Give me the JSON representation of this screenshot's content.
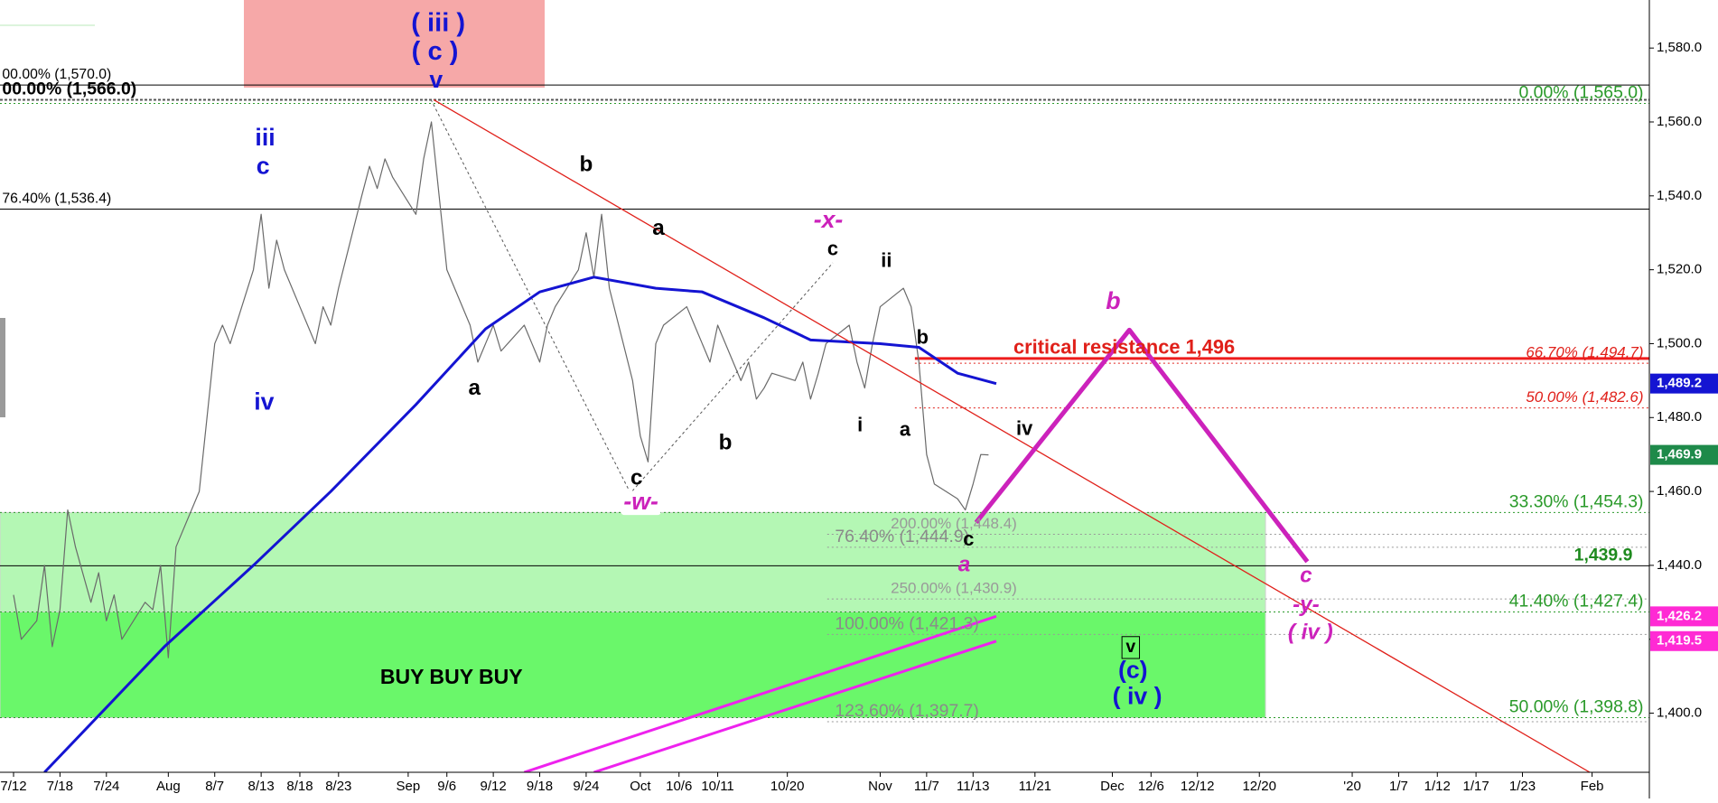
{
  "chart_data": {
    "type": "line",
    "xlim": [
      191.25,
      404.4
    ],
    "ylim": [
      1384,
      1593
    ],
    "xticks": [
      {
        "value": 193,
        "label": "7/12"
      },
      {
        "value": 199,
        "label": "7/18"
      },
      {
        "value": 205,
        "label": "7/24"
      },
      {
        "value": 213,
        "label": "Aug"
      },
      {
        "value": 219,
        "label": "8/7"
      },
      {
        "value": 225,
        "label": "8/13"
      },
      {
        "value": 230,
        "label": "8/18"
      },
      {
        "value": 235,
        "label": "8/23"
      },
      {
        "value": 244,
        "label": "Sep"
      },
      {
        "value": 249,
        "label": "9/6"
      },
      {
        "value": 255,
        "label": "9/12"
      },
      {
        "value": 261,
        "label": "9/18"
      },
      {
        "value": 267,
        "label": "9/24"
      },
      {
        "value": 274,
        "label": "Oct"
      },
      {
        "value": 279,
        "label": "10/6"
      },
      {
        "value": 284,
        "label": "10/11"
      },
      {
        "value": 293,
        "label": "10/20"
      },
      {
        "value": 305,
        "label": "Nov"
      },
      {
        "value": 311,
        "label": "11/7"
      },
      {
        "value": 317,
        "label": "11/13"
      },
      {
        "value": 325,
        "label": "11/21"
      },
      {
        "value": 335,
        "label": "Dec"
      },
      {
        "value": 340,
        "label": "12/6"
      },
      {
        "value": 346,
        "label": "12/12"
      },
      {
        "value": 354,
        "label": "12/20"
      },
      {
        "value": 366,
        "label": "'20"
      },
      {
        "value": 372,
        "label": "1/7"
      },
      {
        "value": 377,
        "label": "1/12"
      },
      {
        "value": 382,
        "label": "1/17"
      },
      {
        "value": 388,
        "label": "1/23"
      },
      {
        "value": 397,
        "label": "Feb"
      }
    ],
    "yticks": [
      {
        "value": 1400,
        "label": "1,400.0"
      },
      {
        "value": 1420,
        "label": "1,420.0"
      },
      {
        "value": 1440,
        "label": "1,440.0"
      },
      {
        "value": 1460,
        "label": "1,460.0"
      },
      {
        "value": 1480,
        "label": "1,480.0"
      },
      {
        "value": 1500,
        "label": "1,500.0"
      },
      {
        "value": 1520,
        "label": "1,520.0"
      },
      {
        "value": 1540,
        "label": "1,540.0"
      },
      {
        "value": 1560,
        "label": "1,560.0"
      },
      {
        "value": 1580,
        "label": "1,580.0"
      }
    ],
    "series": [
      {
        "color": "#6a6a6a",
        "x": [
          193,
          194,
          196,
          197,
          198,
          199,
          200,
          201,
          203,
          204,
          205,
          206,
          207,
          210,
          211,
          212,
          213,
          214,
          217,
          218,
          219,
          220,
          221,
          224,
          225,
          226,
          227,
          228,
          230,
          231,
          232,
          233,
          234,
          235,
          238,
          239,
          240,
          241,
          242,
          245,
          246,
          247,
          248,
          249,
          252,
          253,
          254,
          255,
          256,
          259,
          260,
          261,
          262,
          263,
          266,
          267,
          268,
          269,
          270,
          273,
          274,
          275,
          276,
          277,
          280,
          281,
          282,
          283,
          284,
          287,
          288,
          289,
          290,
          291,
          294,
          295,
          296,
          297,
          298,
          301,
          302,
          303,
          304,
          305,
          308,
          309,
          310,
          311,
          312,
          315,
          316,
          317,
          318,
          319
        ],
        "values": [
          1432,
          1420,
          1425,
          1440,
          1418,
          1428,
          1455,
          1445,
          1430,
          1438,
          1425,
          1432,
          1420,
          1430,
          1428,
          1440,
          1415,
          1445,
          1460,
          1480,
          1500,
          1505,
          1500,
          1520,
          1535,
          1515,
          1528,
          1520,
          1510,
          1505,
          1500,
          1510,
          1505,
          1515,
          1540,
          1548,
          1542,
          1550,
          1545,
          1535,
          1550,
          1560,
          1540,
          1520,
          1505,
          1495,
          1500,
          1505,
          1498,
          1505,
          1500,
          1495,
          1505,
          1510,
          1520,
          1530,
          1518,
          1535,
          1515,
          1490,
          1475,
          1468,
          1500,
          1505,
          1510,
          1505,
          1500,
          1495,
          1505,
          1490,
          1495,
          1485,
          1488,
          1492,
          1490,
          1495,
          1485,
          1492,
          1500,
          1505,
          1495,
          1488,
          1500,
          1510,
          1515,
          1510,
          1495,
          1470,
          1462,
          1458,
          1455,
          1462,
          1470,
          1469.9
        ]
      },
      {
        "color": "#1414d2",
        "x": [
          197,
          212.5,
          224,
          234,
          245,
          254,
          261,
          268,
          276,
          282,
          290,
          296,
          305,
          310,
          315,
          320
        ],
        "values": [
          1384,
          1418,
          1440,
          1460,
          1483.5,
          1504,
          1514,
          1518,
          1515,
          1514,
          1507,
          1501,
          1500,
          1499,
          1492,
          1489.2
        ]
      },
      {
        "color": "#ee22ee",
        "x": [
          259,
          320
        ],
        "values": [
          1384,
          1426.2
        ]
      },
      {
        "color": "#ee22ee",
        "x": [
          268,
          320
        ],
        "values": [
          1384,
          1419.5
        ]
      },
      {
        "color": "#e0201a",
        "x": [
          247.3,
          396.7
        ],
        "values": [
          1566,
          1384
        ]
      },
      {
        "color": "#cc22bb",
        "x": [
          317.4,
          337.2,
          360.2
        ],
        "values": [
          1451.6,
          1503.7,
          1441
        ]
      }
    ],
    "levels": [
      {
        "value": 1570,
        "label": "00.00% (1,570.0)",
        "color": "#000000",
        "label_color": "#000000",
        "style": "solid"
      },
      {
        "value": 1566,
        "label": "00.00% (1,566.0)",
        "color": "#555555",
        "label_color": "#000000",
        "style": "dashed"
      },
      {
        "value": 1536.4,
        "label": "76.40% (1,536.4)",
        "color": "#000000",
        "label_color": "#000000",
        "style": "solid"
      },
      {
        "value": 1565,
        "label": "0.00% (1,565.0)",
        "color": "#2a9a2a",
        "label_color": "#2a9a2a",
        "style": "dotted"
      },
      {
        "value": 1454.3,
        "label": "33.30% (1,454.3)",
        "color": "#2a9a2a",
        "label_color": "#2a9a2a",
        "style": "dotted"
      },
      {
        "value": 1427.4,
        "label": "41.40% (1,427.4)",
        "color": "#2a9a2a",
        "label_color": "#2a9a2a",
        "style": "dotted"
      },
      {
        "value": 1398.8,
        "label": "50.00% (1,398.8)",
        "color": "#2a9a2a",
        "label_color": "#2a9a2a",
        "style": "dotted"
      },
      {
        "value": 1494.7,
        "label": "66.70% (1,494.7)",
        "color": "#e0201a",
        "label_color": "#e0201a",
        "style": "dotted"
      },
      {
        "value": 1482.6,
        "label": "50.00% (1,482.6)",
        "color": "#e0201a",
        "label_color": "#e0201a",
        "style": "dotted"
      },
      {
        "value": 1448.4,
        "label": "200.00% (1,448.4)",
        "color": "#999999",
        "label_color": "#999999",
        "style": "dotted"
      },
      {
        "value": 1444.9,
        "label": "76.40% (1,444.9)",
        "color": "#999999",
        "label_color": "#8a8a8a",
        "style": "dotted"
      },
      {
        "value": 1430.9,
        "label": "250.00% (1,430.9)",
        "color": "#999999",
        "label_color": "#999999",
        "style": "dotted"
      },
      {
        "value": 1421.3,
        "label": "100.00% (1,421.3)",
        "color": "#999999",
        "label_color": "#8a8a8a",
        "style": "dotted"
      },
      {
        "value": 1397.7,
        "label": "123.60% (1,397.7)",
        "color": "#999999",
        "label_color": "#8a8a8a",
        "style": "dotted"
      },
      {
        "value": 1439.9,
        "label": "1,439.9",
        "color": "#000000",
        "label_color": "#1e8a1e",
        "style": "solid"
      },
      {
        "value": 1496,
        "label": "critical resistance 1,496",
        "color": "#ee1c1c",
        "label_color": "#e0201a",
        "style": "thick"
      }
    ],
    "price_tags": [
      {
        "value": 1489.2,
        "label": "1,489.2",
        "color": "#1414d2"
      },
      {
        "value": 1469.9,
        "label": "1,469.9",
        "color": "#1e8a4a"
      },
      {
        "value": 1426.2,
        "label": "1,426.2",
        "color": "#ff2ad4"
      },
      {
        "value": 1419.5,
        "label": "1,419.5",
        "color": "#ff2ad4"
      }
    ],
    "annotations": [
      {
        "text": "( iii )",
        "color": "#1414d2"
      },
      {
        "text": "( c )",
        "color": "#1414d2"
      },
      {
        "text": "v",
        "color": "#1414d2"
      },
      {
        "text": "iii",
        "color": "#1414d2"
      },
      {
        "text": "c",
        "color": "#1414d2"
      },
      {
        "text": "iv",
        "color": "#1414d2"
      },
      {
        "text": "b",
        "color": "#000000"
      },
      {
        "text": "a",
        "color": "#000000"
      },
      {
        "text": "a",
        "color": "#000000"
      },
      {
        "text": "c",
        "color": "#000000"
      },
      {
        "text": "-w-",
        "color": "#cc22bb"
      },
      {
        "text": "b",
        "color": "#000000"
      },
      {
        "text": "-x-",
        "color": "#cc22bb"
      },
      {
        "text": "c",
        "color": "#000000"
      },
      {
        "text": "ii",
        "color": "#000000"
      },
      {
        "text": "i",
        "color": "#000000"
      },
      {
        "text": "b",
        "color": "#000000"
      },
      {
        "text": "a",
        "color": "#000000"
      },
      {
        "text": "c",
        "color": "#000000"
      },
      {
        "text": "a",
        "color": "#cc22bb"
      },
      {
        "text": "iv",
        "color": "#000000"
      },
      {
        "text": "b",
        "color": "#cc22bb"
      },
      {
        "text": "c",
        "color": "#cc22bb"
      },
      {
        "text": "-y-",
        "color": "#cc22bb"
      },
      {
        "text": "( iv )",
        "color": "#cc22bb"
      },
      {
        "text": "v",
        "color": "#000000"
      },
      {
        "text": "(c)",
        "color": "#1414d2"
      },
      {
        "text": "( iv )",
        "color": "#1414d2"
      },
      {
        "text": "BUY BUY BUY",
        "color": "#000000"
      }
    ]
  }
}
